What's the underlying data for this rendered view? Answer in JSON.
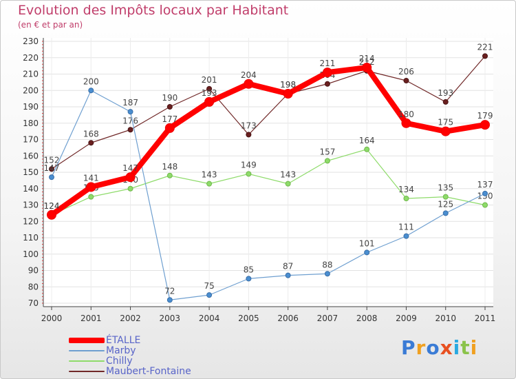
{
  "header": {
    "title": "Evolution des Impôts locaux par Habitant",
    "subtitle": "(en € et par an)"
  },
  "logo": {
    "text": "Proxiti",
    "colors": [
      "#3a7bd5",
      "#f0a020",
      "#3a7bd5",
      "#e85020",
      "#2aa9e0",
      "#8bc34a",
      "#f0a020"
    ]
  },
  "chart_data": {
    "type": "line",
    "title": "Evolution des Impôts locaux par Habitant",
    "subtitle": "(en € et par an)",
    "xlabel": "",
    "ylabel": "",
    "x": [
      "2000",
      "2001",
      "2002",
      "2003",
      "2004",
      "2005",
      "2006",
      "2007",
      "2008",
      "2009",
      "2010",
      "2011"
    ],
    "ylim": [
      70,
      230
    ],
    "yticks": [
      70,
      80,
      90,
      100,
      110,
      120,
      130,
      140,
      150,
      160,
      170,
      180,
      190,
      200,
      210,
      220,
      230
    ],
    "grid": true,
    "legend_position": "bottom-left",
    "series": [
      {
        "name": "Maubert-Fontaine",
        "color": "#702828",
        "values": [
          152,
          168,
          176,
          190,
          201,
          173,
          198,
          204,
          212,
          206,
          193,
          221
        ]
      },
      {
        "name": "Chilly",
        "color": "#8edb6a",
        "values": [
          124,
          135,
          140,
          148,
          143,
          149,
          143,
          157,
          164,
          134,
          135,
          130
        ]
      },
      {
        "name": "Marby",
        "color": "#6e9fd0",
        "values": [
          147,
          200,
          187,
          72,
          75,
          85,
          87,
          88,
          101,
          111,
          125,
          137
        ]
      },
      {
        "name": "ÉTALLE",
        "color": "#ff0000",
        "values": [
          124,
          141,
          147,
          177,
          193,
          204,
          198,
          211,
          214,
          180,
          175,
          179
        ]
      }
    ]
  }
}
